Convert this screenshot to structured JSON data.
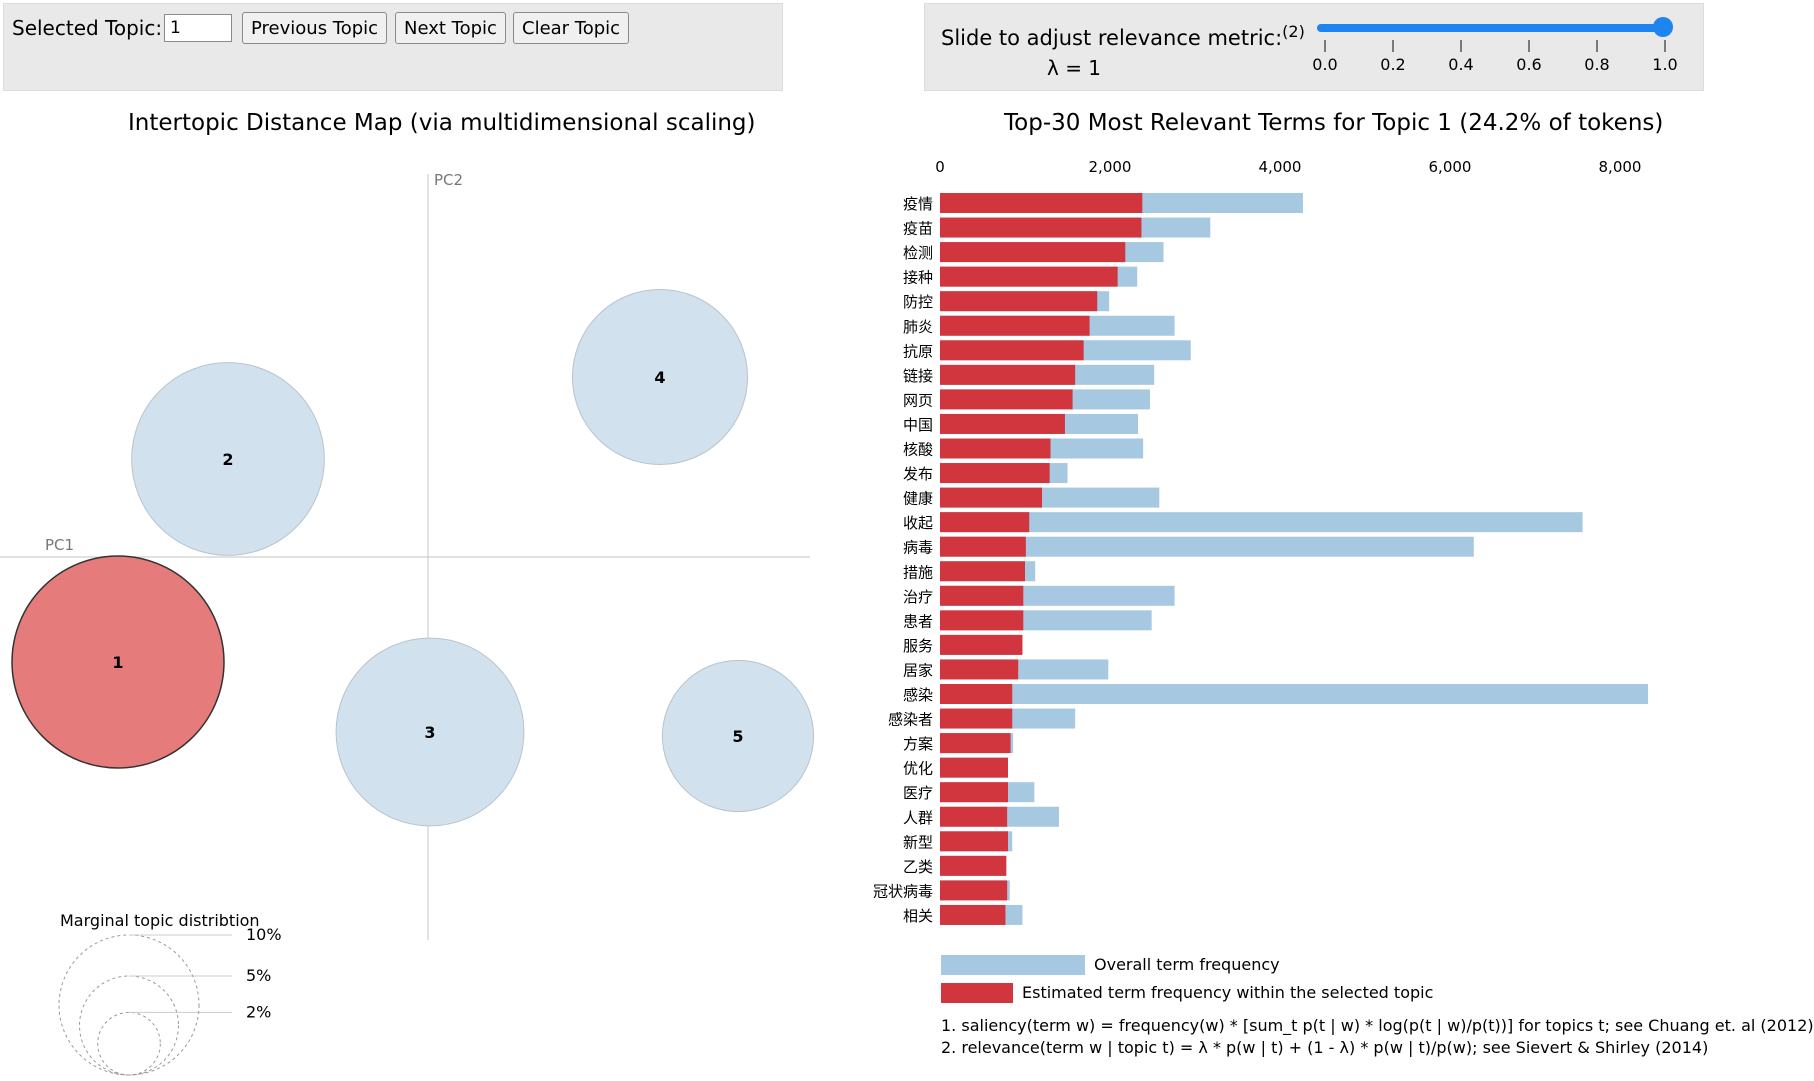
{
  "controls": {
    "selected_topic_label": "Selected Topic:",
    "selected_topic_value": "1",
    "previous_button": "Previous Topic",
    "next_button": "Next Topic",
    "clear_button": "Clear Topic",
    "slider_label": "Slide to adjust relevance metric:",
    "slider_footnote_ref": "(2)",
    "lambda_text": "λ = 1",
    "lambda_value": 1.0,
    "slider_ticks": [
      "0.0",
      "0.2",
      "0.4",
      "0.6",
      "0.8",
      "1.0"
    ]
  },
  "footnotes": {
    "note1": "1. saliency(term w) = frequency(w) * [sum_t p(t | w) * log(p(t | w)/p(t))] for topics t; see Chuang et. al (2012)",
    "note2": "2. relevance(term w | topic t) = λ * p(w | t) + (1 - λ) * p(w | t)/p(w); see Sievert & Shirley (2014)"
  },
  "colors": {
    "selected_topic": "#e57b7b",
    "topic_circle": "#d1e1ee",
    "overall_bar": "#a6c8e1",
    "estimated_bar": "#d1363f",
    "accent": "#1e84f0"
  },
  "chart_data": [
    {
      "type": "scatter",
      "title": "Intertopic Distance Map (via multidimensional scaling)",
      "xlabel": "PC1",
      "ylabel": "PC2",
      "selected_topic": 1,
      "topics": [
        {
          "id": "1",
          "x": -0.31,
          "y": -0.105,
          "size": 0.242
        },
        {
          "id": "2",
          "x": -0.2,
          "y": 0.098,
          "size": 0.2
        },
        {
          "id": "3",
          "x": 0.002,
          "y": -0.175,
          "size": 0.19
        },
        {
          "id": "4",
          "x": 0.232,
          "y": 0.18,
          "size": 0.165
        },
        {
          "id": "5",
          "x": 0.31,
          "y": -0.179,
          "size": 0.123
        }
      ],
      "legend": {
        "title": "Marginal topic distribtion",
        "items": [
          {
            "label": "2%",
            "value": 0.02
          },
          {
            "label": "5%",
            "value": 0.05
          },
          {
            "label": "10%",
            "value": 0.1
          }
        ]
      }
    },
    {
      "type": "bar",
      "orientation": "horizontal",
      "title": "Top-30 Most Relevant Terms for Topic 1 (24.2% of tokens)",
      "xlim": [
        0,
        8000
      ],
      "x_ticks": [
        0,
        2000,
        4000,
        6000,
        8000
      ],
      "x_tick_labels": [
        "0",
        "2,000",
        "4,000",
        "6,000",
        "8,000"
      ],
      "categories": [
        "疫情",
        "疫苗",
        "检测",
        "接种",
        "防控",
        "肺炎",
        "抗原",
        "链接",
        "网页",
        "中国",
        "核酸",
        "发布",
        "健康",
        "收起",
        "病毒",
        "措施",
        "治疗",
        "患者",
        "服务",
        "居家",
        "感染",
        "感染者",
        "方案",
        "优化",
        "医疗",
        "人群",
        "新型",
        "乙类",
        "冠状病毒",
        "相关"
      ],
      "series": [
        {
          "name": "Overall term frequency",
          "values": [
            4270,
            3180,
            2630,
            2320,
            1990,
            2760,
            2950,
            2520,
            2470,
            2330,
            2390,
            1500,
            2580,
            7560,
            6280,
            1120,
            2760,
            2490,
            950,
            1980,
            8330,
            1590,
            860,
            800,
            1110,
            1400,
            850,
            780,
            820,
            970
          ]
        },
        {
          "name": "Estimated term frequency within the selected topic",
          "values": [
            2380,
            2370,
            2180,
            2090,
            1850,
            1760,
            1690,
            1590,
            1560,
            1470,
            1300,
            1290,
            1200,
            1050,
            1010,
            1000,
            980,
            980,
            970,
            920,
            850,
            850,
            830,
            800,
            800,
            790,
            800,
            780,
            790,
            770
          ]
        }
      ],
      "legend": [
        "Overall term frequency",
        "Estimated term frequency within the selected topic"
      ]
    }
  ]
}
